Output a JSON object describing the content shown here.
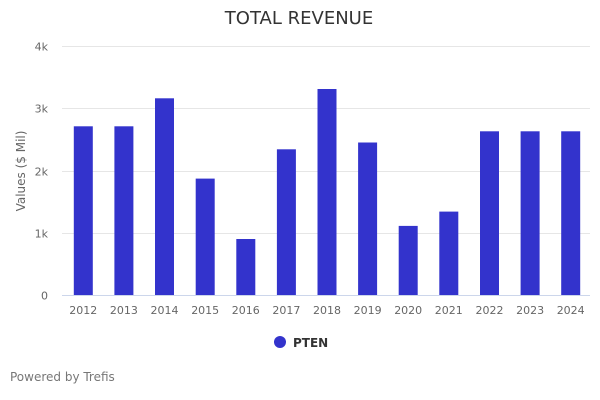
{
  "chart_data": {
    "type": "bar",
    "title": "TOTAL REVENUE",
    "xlabel": "",
    "ylabel": "Values ($ Mil)",
    "categories": [
      "2012",
      "2013",
      "2014",
      "2015",
      "2016",
      "2017",
      "2018",
      "2019",
      "2020",
      "2021",
      "2022",
      "2023",
      "2024"
    ],
    "series": [
      {
        "name": "PTEN",
        "color": "#3333cc",
        "values": [
          2710,
          2710,
          3160,
          1870,
          900,
          2340,
          3310,
          2450,
          1110,
          1340,
          2630,
          2630,
          2630
        ]
      }
    ],
    "ylim": [
      0,
      4000
    ],
    "yticks": [
      0,
      1000,
      2000,
      3000,
      4000
    ],
    "ytick_labels": [
      "0",
      "1k",
      "2k",
      "3k",
      "4k"
    ],
    "grid": true,
    "legend_position": "bottom-center"
  },
  "credit": "Powered by Trefis"
}
